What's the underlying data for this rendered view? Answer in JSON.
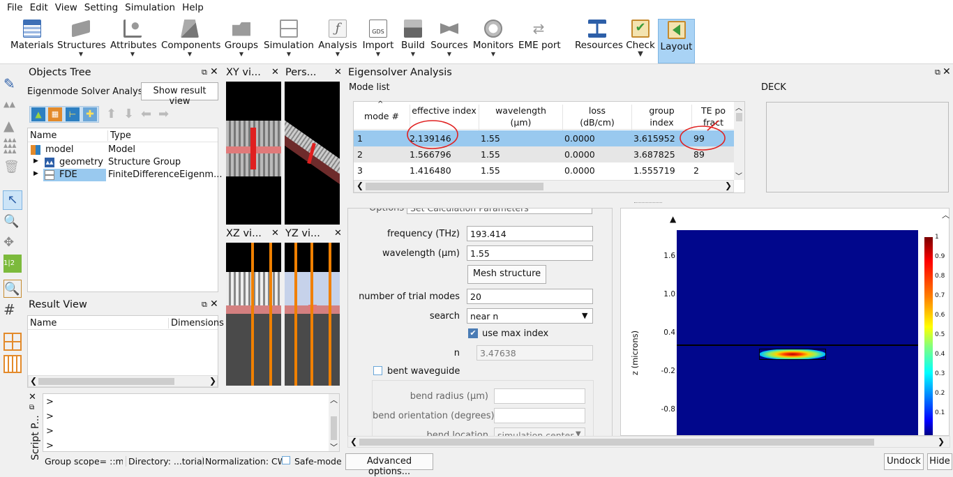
{
  "menu": [
    "File",
    "Edit",
    "View",
    "Setting",
    "Simulation",
    "Help"
  ],
  "toolbar": [
    {
      "label": "Materials",
      "icon": "materials-icon"
    },
    {
      "label": "Structures",
      "icon": "structures-icon"
    },
    {
      "label": "Attributes",
      "icon": "attributes-icon"
    },
    {
      "label": "Components",
      "icon": "components-icon"
    },
    {
      "label": "Groups",
      "icon": "groups-icon"
    },
    {
      "label": "Simulation",
      "icon": "simulation-icon"
    },
    {
      "label": "Analysis",
      "icon": "analysis-icon"
    },
    {
      "label": "Import",
      "icon": "import-gds-icon",
      "icon_text": "GDS"
    },
    {
      "label": "Build",
      "icon": "build-icon"
    },
    {
      "label": "Sources",
      "icon": "sources-icon"
    },
    {
      "label": "Monitors",
      "icon": "monitors-icon"
    },
    {
      "label": "EME port",
      "icon": "eme-port-icon"
    },
    {
      "label": "Resources",
      "icon": "resources-icon"
    },
    {
      "label": "Check",
      "icon": "check-icon"
    },
    {
      "label": "Layout",
      "icon": "layout-icon"
    }
  ],
  "objects_tree": {
    "title": "Objects Tree",
    "subtitle": "Eigenmode Solver Analysis",
    "show_result_button": "Show result view",
    "columns": [
      "Name",
      "Type"
    ],
    "rows": [
      {
        "name": "model",
        "type": "Model"
      },
      {
        "name": "geometry",
        "type": "Structure Group"
      },
      {
        "name": "FDE",
        "type": "FiniteDifferenceEigenm..."
      }
    ]
  },
  "result_view": {
    "title": "Result View",
    "columns": [
      "Name",
      "Dimensions"
    ]
  },
  "viewports": [
    "XY vi...",
    "Pers...",
    "XZ vi...",
    "YZ vi..."
  ],
  "script": {
    "title": "Script P...",
    "prompts": [
      ">",
      ">",
      ">",
      ">"
    ]
  },
  "status": {
    "scope": "Group scope= ::mo",
    "directory": "Directory: ...torial",
    "normalization": "Normalization: CW",
    "safe_mode": "Safe-mode"
  },
  "eigen": {
    "title": "Eigensolver Analysis",
    "mode_list_label": "Mode list",
    "deck_label": "DECK",
    "columns": [
      "mode #",
      "effective index",
      "wavelength (µm)",
      "loss (dB/cm)",
      "group index",
      "TE po fract"
    ],
    "rows": [
      [
        "1",
        "2.139146",
        "1.55",
        "0.0000",
        "3.615952",
        "99"
      ],
      [
        "2",
        "1.566796",
        "1.55",
        "0.0000",
        "3.687825",
        "89"
      ],
      [
        "3",
        "1.416480",
        "1.55",
        "0.0000",
        "1.555719",
        "2"
      ]
    ]
  },
  "settings": {
    "options_label": "Options",
    "options_value": "Set Calculation Parameters",
    "frequency_label": "frequency (THz)",
    "frequency_value": "193.414",
    "wavelength_label": "wavelength (µm)",
    "wavelength_value": "1.55",
    "mesh_button": "Mesh structure",
    "trial_label": "number of trial modes",
    "trial_value": "20",
    "search_label": "search",
    "search_value": "near n",
    "use_max_label": "use max index",
    "use_max_checked": true,
    "n_label": "n",
    "n_value": "3.47638",
    "bent_label": "bent waveguide",
    "bent_checked": false,
    "bend_radius_label": "bend radius (µm)",
    "bend_orientation_label": "bend orientation (degrees)",
    "bend_location_label": "bend location",
    "bend_location_value": "simulation center"
  },
  "plot": {
    "ylabel": "z (microns)",
    "yticks": [
      "1.6",
      "1.0",
      "0.4",
      "-0.2",
      "-0.8"
    ],
    "colorbar_ticks": [
      "1",
      "0.9",
      "0.8",
      "0.7",
      "0.6",
      "0.5",
      "0.4",
      "0.3",
      "0.2",
      "0.1"
    ]
  },
  "buttons": {
    "advanced": "Advanced options...",
    "undock": "Undock",
    "hide": "Hide"
  }
}
